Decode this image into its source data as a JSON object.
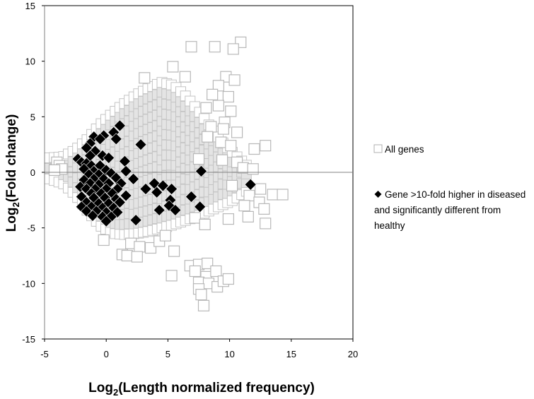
{
  "chart_data": {
    "type": "scatter",
    "xlabel_main": "Log",
    "xlabel_sub": "2",
    "xlabel_rest": "(Length normalized frequency)",
    "ylabel_main": "Log",
    "ylabel_sub": "2",
    "ylabel_rest": "(Fold change)",
    "xlim": [
      -5,
      20
    ],
    "ylim": [
      -15,
      15
    ],
    "x_ticks": [
      -5,
      0,
      5,
      10,
      15,
      20
    ],
    "x_tick_labels": [
      "-5",
      "0",
      "5",
      "10",
      "15",
      "20"
    ],
    "y_ticks": [
      -15,
      -10,
      -5,
      0,
      5,
      10,
      15
    ],
    "y_tick_labels": [
      "-15",
      "-10",
      "-5",
      "0",
      "5",
      "10",
      "15"
    ],
    "grid": false,
    "legend_position": "right",
    "series": [
      {
        "name": "All genes",
        "marker": "open-square",
        "color": "#bfbfbf",
        "envelope": {
          "upper": [
            [
              -4.6,
              1.3
            ],
            [
              -3.5,
              1.4
            ],
            [
              -2.5,
              2.0
            ],
            [
              -1.5,
              3.0
            ],
            [
              -0.5,
              4.3
            ],
            [
              0.5,
              5.3
            ],
            [
              1.5,
              6.2
            ],
            [
              2.5,
              7.0
            ],
            [
              3.5,
              7.6
            ],
            [
              4.5,
              8.1
            ],
            [
              5.5,
              7.8
            ],
            [
              6.5,
              6.8
            ],
            [
              7.5,
              5.5
            ],
            [
              8.5,
              4.0
            ],
            [
              9.5,
              2.6
            ],
            [
              10.5,
              1.5
            ],
            [
              11.5,
              0.5
            ]
          ],
          "lower": [
            [
              -4.6,
              -0.6
            ],
            [
              -3.5,
              -1.0
            ],
            [
              -2.5,
              -2.0
            ],
            [
              -1.5,
              -3.5
            ],
            [
              -0.5,
              -4.8
            ],
            [
              0.5,
              -5.5
            ],
            [
              1.5,
              -5.6
            ],
            [
              2.5,
              -5.5
            ],
            [
              3.5,
              -5.3
            ],
            [
              4.5,
              -5.0
            ],
            [
              5.5,
              -4.7
            ],
            [
              6.5,
              -4.3
            ],
            [
              7.5,
              -3.9
            ],
            [
              8.5,
              -3.4
            ],
            [
              9.5,
              -2.9
            ],
            [
              10.5,
              -2.4
            ],
            [
              11.5,
              -1.6
            ]
          ]
        },
        "points": [
          [
            10.9,
            11.7
          ],
          [
            10.3,
            11.1
          ],
          [
            8.8,
            11.3
          ],
          [
            6.9,
            11.3
          ],
          [
            5.4,
            9.5
          ],
          [
            3.1,
            8.5
          ],
          [
            6.4,
            8.6
          ],
          [
            9.7,
            8.6
          ],
          [
            10.4,
            8.3
          ],
          [
            9.1,
            7.8
          ],
          [
            8.6,
            7.0
          ],
          [
            9.9,
            6.8
          ],
          [
            9.1,
            6.0
          ],
          [
            8.1,
            5.8
          ],
          [
            10.1,
            5.5
          ],
          [
            9.6,
            4.5
          ],
          [
            8.5,
            4.1
          ],
          [
            9.5,
            3.9
          ],
          [
            10.6,
            3.6
          ],
          [
            8.2,
            3.2
          ],
          [
            9.3,
            2.7
          ],
          [
            10.1,
            2.4
          ],
          [
            12.0,
            2.1
          ],
          [
            12.9,
            2.4
          ],
          [
            7.5,
            1.2
          ],
          [
            9.4,
            1.1
          ],
          [
            10.6,
            0.9
          ],
          [
            11.1,
            0.4
          ],
          [
            11.9,
            0.3
          ],
          [
            10.2,
            -1.2
          ],
          [
            12.5,
            -1.5
          ],
          [
            13.5,
            -2.0
          ],
          [
            14.3,
            -2.0
          ],
          [
            11.6,
            -2.1
          ],
          [
            12.4,
            -2.7
          ],
          [
            11.2,
            -3.0
          ],
          [
            12.8,
            -3.3
          ],
          [
            12.9,
            -4.6
          ],
          [
            11.5,
            -4.0
          ],
          [
            9.9,
            -4.2
          ],
          [
            7.2,
            -4.1
          ],
          [
            8.0,
            -4.7
          ],
          [
            -0.2,
            -6.1
          ],
          [
            2.0,
            -6.4
          ],
          [
            2.7,
            -6.7
          ],
          [
            3.6,
            -6.8
          ],
          [
            4.3,
            -6.2
          ],
          [
            4.8,
            -5.7
          ],
          [
            5.5,
            -7.1
          ],
          [
            1.3,
            -7.4
          ],
          [
            1.7,
            -7.5
          ],
          [
            2.5,
            -7.6
          ],
          [
            5.3,
            -9.3
          ],
          [
            6.8,
            -8.4
          ],
          [
            7.5,
            -8.3
          ],
          [
            8.2,
            -8.2
          ],
          [
            7.2,
            -8.9
          ],
          [
            8.1,
            -9.4
          ],
          [
            8.9,
            -8.9
          ],
          [
            7.5,
            -9.9
          ],
          [
            8.3,
            -10.0
          ],
          [
            9.0,
            -10.3
          ],
          [
            9.5,
            -9.8
          ],
          [
            9.9,
            -9.6
          ],
          [
            7.5,
            -10.5
          ],
          [
            7.7,
            -11.0
          ],
          [
            7.9,
            -12.0
          ],
          [
            -4.0,
            0.9
          ],
          [
            -3.8,
            0.6
          ],
          [
            -3.6,
            0.3
          ],
          [
            -4.2,
            0.2
          ]
        ]
      },
      {
        "name": "Gene >10-fold higher in diseased and significantly different from healthy",
        "legend_lines": [
          "Gene >10-fold higher in diseased",
          "and significantly different from",
          "healthy"
        ],
        "marker": "filled-diamond",
        "color": "#000000",
        "points": [
          [
            1.1,
            4.2
          ],
          [
            0.6,
            3.6
          ],
          [
            -0.2,
            3.3
          ],
          [
            -1.0,
            3.2
          ],
          [
            0.8,
            3.0
          ],
          [
            -0.5,
            3.0
          ],
          [
            -1.3,
            2.6
          ],
          [
            2.8,
            2.5
          ],
          [
            -1.6,
            2.2
          ],
          [
            -0.9,
            1.9
          ],
          [
            -1.3,
            1.5
          ],
          [
            -0.3,
            1.5
          ],
          [
            0.2,
            1.3
          ],
          [
            1.5,
            1.0
          ],
          [
            -2.3,
            1.2
          ],
          [
            -2.0,
            0.9
          ],
          [
            -1.6,
            0.8
          ],
          [
            -1.2,
            0.6
          ],
          [
            -0.5,
            0.6
          ],
          [
            -1.8,
            0.3
          ],
          [
            0.0,
            0.2
          ],
          [
            -1.0,
            0.1
          ],
          [
            1.6,
            0.1
          ],
          [
            -1.4,
            -0.2
          ],
          [
            -0.6,
            -0.2
          ],
          [
            0.4,
            -0.1
          ],
          [
            7.7,
            0.1
          ],
          [
            -1.0,
            -0.6
          ],
          [
            -0.2,
            -0.6
          ],
          [
            0.8,
            -0.5
          ],
          [
            -1.8,
            -0.7
          ],
          [
            2.2,
            -0.6
          ],
          [
            -1.3,
            -1.0
          ],
          [
            -0.6,
            -1.1
          ],
          [
            0.2,
            -1.0
          ],
          [
            1.2,
            -1.0
          ],
          [
            -2.1,
            -1.3
          ],
          [
            3.9,
            -1.0
          ],
          [
            4.6,
            -1.2
          ],
          [
            11.7,
            -1.1
          ],
          [
            -1.6,
            -1.5
          ],
          [
            -0.9,
            -1.5
          ],
          [
            0.0,
            -1.5
          ],
          [
            0.9,
            -1.5
          ],
          [
            -1.2,
            -1.9
          ],
          [
            -0.4,
            -1.9
          ],
          [
            0.5,
            -1.9
          ],
          [
            3.2,
            -1.5
          ],
          [
            5.3,
            -1.5
          ],
          [
            -2.0,
            -2.2
          ],
          [
            -1.0,
            -2.3
          ],
          [
            -0.1,
            -2.3
          ],
          [
            0.8,
            -2.4
          ],
          [
            1.6,
            -2.1
          ],
          [
            4.1,
            -1.8
          ],
          [
            6.9,
            -2.2
          ],
          [
            -1.6,
            -2.7
          ],
          [
            -0.6,
            -2.8
          ],
          [
            0.2,
            -2.8
          ],
          [
            1.1,
            -2.7
          ],
          [
            5.2,
            -2.5
          ],
          [
            -2.0,
            -3.1
          ],
          [
            -1.2,
            -3.1
          ],
          [
            -0.3,
            -3.2
          ],
          [
            0.6,
            -3.2
          ],
          [
            7.6,
            -3.1
          ],
          [
            5.1,
            -3.0
          ],
          [
            -1.6,
            -3.5
          ],
          [
            -0.8,
            -3.5
          ],
          [
            0.0,
            -3.6
          ],
          [
            0.9,
            -3.6
          ],
          [
            4.3,
            -3.4
          ],
          [
            5.6,
            -3.4
          ],
          [
            -1.1,
            -3.9
          ],
          [
            -0.3,
            -4.0
          ],
          [
            0.4,
            -4.0
          ],
          [
            2.4,
            -4.3
          ],
          [
            0.0,
            -4.4
          ]
        ]
      }
    ]
  }
}
